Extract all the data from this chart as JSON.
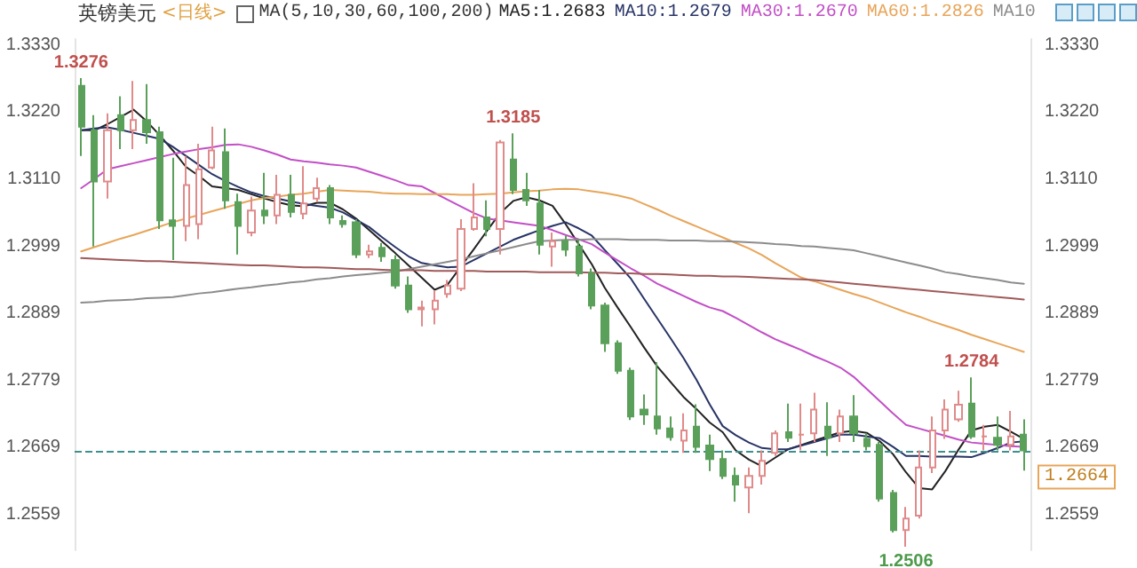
{
  "chart_data": {
    "type": "candlestick",
    "title": "英镑美元",
    "subtitle": "<日线>",
    "annotations": [
      "MA(5,10,30,60,100,200)",
      {
        "text": "1.3276",
        "y": 1.3276
      },
      {
        "text": "1.3185",
        "y": 1.3185
      },
      {
        "text": "1.2784",
        "y": 1.2784
      },
      {
        "text": "1.2506",
        "y": 1.2506
      }
    ],
    "categories": [
      null,
      null,
      null,
      null,
      null,
      null,
      null,
      null,
      null,
      null,
      null,
      null,
      null,
      null,
      null,
      null,
      null,
      null,
      null,
      null,
      null,
      null,
      null,
      null,
      null,
      null,
      null,
      null,
      null,
      null,
      null,
      null,
      null,
      null,
      null,
      null,
      null,
      null,
      null,
      null,
      null,
      null,
      null,
      null,
      null,
      null,
      null,
      null,
      null,
      null,
      null,
      null,
      null,
      null,
      null,
      null,
      null,
      null,
      null,
      null,
      null,
      null,
      null,
      null,
      null,
      null,
      null,
      null,
      null,
      null,
      null,
      null,
      null
    ],
    "ohlc": [
      [
        1.3263,
        1.3276,
        1.3148,
        1.3196
      ],
      [
        1.319,
        1.3215,
        1.2999,
        1.3106
      ],
      [
        1.3106,
        1.3218,
        1.3078,
        1.319
      ],
      [
        1.3215,
        1.3246,
        1.3159,
        1.319
      ],
      [
        1.319,
        1.3271,
        1.3159,
        1.3207
      ],
      [
        1.3207,
        1.3266,
        1.3168,
        1.3187
      ],
      [
        1.3187,
        1.3196,
        1.3028,
        1.3042
      ],
      [
        1.3042,
        1.3145,
        1.2977,
        1.3033
      ],
      [
        1.3033,
        1.3148,
        1.3008,
        1.31
      ],
      [
        1.3036,
        1.3168,
        1.3011,
        1.3126
      ],
      [
        1.3129,
        1.3196,
        1.3126,
        1.3157
      ],
      [
        1.3154,
        1.3193,
        1.3061,
        1.3075
      ],
      [
        1.3072,
        1.3086,
        1.2986,
        1.3033
      ],
      [
        1.3022,
        1.3081,
        1.3016,
        1.3058
      ],
      [
        1.3058,
        1.312,
        1.3036,
        1.305
      ],
      [
        1.305,
        1.3117,
        1.3036,
        1.3084
      ],
      [
        1.3084,
        1.3117,
        1.3047,
        1.3056
      ],
      [
        1.3053,
        1.3131,
        1.3044,
        1.307
      ],
      [
        1.3078,
        1.3112,
        1.3072,
        1.3095
      ],
      [
        1.3095,
        1.31,
        1.3036,
        1.3047
      ],
      [
        1.3041,
        1.305,
        1.303,
        1.3036
      ],
      [
        1.3039,
        1.3044,
        1.298,
        1.2986
      ],
      [
        1.2986,
        1.3002,
        1.298,
        1.2991
      ],
      [
        1.2997,
        1.3005,
        1.2974,
        1.2983
      ],
      [
        1.2977,
        1.2985,
        1.293,
        1.2935
      ],
      [
        1.2935,
        1.295,
        1.289,
        1.2896
      ],
      [
        1.2896,
        1.291,
        1.2868,
        1.2899
      ],
      [
        1.2896,
        1.2927,
        1.2871,
        1.291
      ],
      [
        1.2921,
        1.2944,
        1.2915,
        1.2935
      ],
      [
        1.293,
        1.3044,
        1.2926,
        1.3028
      ],
      [
        1.3028,
        1.3103,
        1.3025,
        1.3047
      ],
      [
        1.3047,
        1.3075,
        1.3016,
        1.3028
      ],
      [
        1.3028,
        1.3174,
        1.2986,
        1.317
      ],
      [
        1.3142,
        1.3185,
        1.3085,
        1.3092
      ],
      [
        1.3092,
        1.312,
        1.3066,
        1.3075
      ],
      [
        1.307,
        1.3092,
        1.2986,
        1.3002
      ],
      [
        1.2999,
        1.3022,
        1.2966,
        1.3008
      ],
      [
        1.3008,
        1.3017,
        1.2983,
        1.2994
      ],
      [
        1.2999,
        1.3011,
        1.295,
        1.2955
      ],
      [
        1.2955,
        1.2963,
        1.2896,
        1.2902
      ],
      [
        1.2902,
        1.2907,
        1.2826,
        1.284
      ],
      [
        1.284,
        1.2845,
        1.279,
        1.2795
      ],
      [
        1.2795,
        1.28,
        1.2714,
        1.272
      ],
      [
        1.2731,
        1.2756,
        1.2706,
        1.2723
      ],
      [
        1.272,
        1.2809,
        1.269,
        1.27
      ],
      [
        1.27,
        1.272,
        1.268,
        1.2686
      ],
      [
        1.268,
        1.2725,
        1.266,
        1.2697
      ],
      [
        1.2703,
        1.274,
        1.266,
        1.267
      ],
      [
        1.2672,
        1.269,
        1.263,
        1.265
      ],
      [
        1.265,
        1.2664,
        1.2617,
        1.2622
      ],
      [
        1.2622,
        1.2636,
        1.258,
        1.2608
      ],
      [
        1.2603,
        1.2636,
        1.2561,
        1.2622
      ],
      [
        1.2622,
        1.2664,
        1.2608,
        1.2647
      ],
      [
        1.266,
        1.2697,
        1.2655,
        1.2692
      ],
      [
        1.2694,
        1.2741,
        1.2678,
        1.2685
      ],
      [
        1.269,
        1.2741,
        1.2664,
        1.269
      ],
      [
        1.2692,
        1.2759,
        1.2678,
        1.2731
      ],
      [
        1.2703,
        1.2743,
        1.2655,
        1.2685
      ],
      [
        1.2692,
        1.2731,
        1.2678,
        1.272
      ],
      [
        1.272,
        1.2755,
        1.2678,
        1.2692
      ],
      [
        1.2683,
        1.2692,
        1.2664,
        1.2671
      ],
      [
        1.2673,
        1.2678,
        1.258,
        1.2585
      ],
      [
        1.2594,
        1.2599,
        1.2529,
        1.2533
      ],
      [
        1.2533,
        1.2571,
        1.2506,
        1.2552
      ],
      [
        1.2557,
        1.2664,
        1.2552,
        1.2636
      ],
      [
        1.2636,
        1.272,
        1.2627,
        1.2697
      ],
      [
        1.2697,
        1.2748,
        1.2683,
        1.2731
      ],
      [
        1.2715,
        1.2762,
        1.2711,
        1.2739
      ],
      [
        1.2741,
        1.2784,
        1.2683,
        1.2687
      ],
      [
        1.2687,
        1.2706,
        1.2664,
        1.2687
      ],
      [
        1.2685,
        1.272,
        1.2664,
        1.2673
      ],
      [
        1.2673,
        1.2729,
        1.2664,
        1.2687
      ],
      [
        1.269,
        1.2715,
        1.2631,
        1.2664
      ]
    ],
    "colors": [
      "#5aa05a",
      "#5aa05a",
      "#e08a8a",
      "#5aa05a",
      "#e08a8a",
      "#5aa05a",
      "#5aa05a",
      "#5aa05a",
      "#e08a8a",
      "#e08a8a",
      "#e08a8a",
      "#5aa05a",
      "#5aa05a",
      "#e08a8a",
      "#5aa05a",
      "#e08a8a",
      "#5aa05a",
      "#e08a8a",
      "#e08a8a",
      "#5aa05a",
      "#5aa05a",
      "#5aa05a",
      "#e08a8a",
      "#5aa05a",
      "#5aa05a",
      "#5aa05a",
      "#e08a8a",
      "#e08a8a",
      "#e08a8a",
      "#e08a8a",
      "#e08a8a",
      "#5aa05a",
      "#e08a8a",
      "#5aa05a",
      "#5aa05a",
      "#5aa05a",
      "#e08a8a",
      "#5aa05a",
      "#5aa05a",
      "#5aa05a",
      "#5aa05a",
      "#5aa05a",
      "#5aa05a",
      "#5aa05a",
      "#5aa05a",
      "#5aa05a",
      "#e08a8a",
      "#5aa05a",
      "#5aa05a",
      "#5aa05a",
      "#5aa05a",
      "#e08a8a",
      "#e08a8a",
      "#e08a8a",
      "#5aa05a",
      "#e08a8a",
      "#e08a8a",
      "#5aa05a",
      "#e08a8a",
      "#5aa05a",
      "#5aa05a",
      "#5aa05a",
      "#5aa05a",
      "#e08a8a",
      "#e08a8a",
      "#e08a8a",
      "#e08a8a",
      "#e08a8a",
      "#5aa05a",
      "#e08a8a",
      "#5aa05a",
      "#e08a8a",
      "#5aa05a"
    ],
    "series": [
      {
        "type": "line",
        "name": "MA5:1.2683",
        "color": "#222222",
        "values": [
          1.319,
          1.319,
          1.32,
          1.3212,
          1.3224,
          1.3205,
          1.3182,
          1.3157,
          1.313,
          1.3115,
          1.3098,
          1.3095,
          1.3092,
          1.3085,
          1.3078,
          1.3072,
          1.3067,
          1.3065,
          1.3071,
          1.3071,
          1.306,
          1.3045,
          1.3026,
          1.3007,
          1.2988,
          1.2968,
          1.2948,
          1.2928,
          1.2937,
          1.2966,
          1.2995,
          1.3025,
          1.3054,
          1.3074,
          1.308,
          1.3075,
          1.3066,
          1.3036,
          1.3003,
          1.297,
          1.2931,
          1.2898,
          1.2866,
          1.2833,
          1.2802,
          1.2777,
          1.2752,
          1.2732,
          1.271,
          1.2694,
          1.2664,
          1.2649,
          1.2638,
          1.2652,
          1.2666,
          1.2673,
          1.268,
          1.2687,
          1.2694,
          1.2696,
          1.2693,
          1.2679,
          1.2658,
          1.2628,
          1.2602,
          1.26,
          1.263,
          1.2665,
          1.2697,
          1.2703,
          1.2706,
          1.2695,
          1.2683
        ]
      },
      {
        "type": "line",
        "name": "MA10:1.2679",
        "color": "#283466",
        "values": [
          1.319,
          1.3193,
          1.3195,
          1.3191,
          1.3186,
          1.3181,
          1.3176,
          1.3163,
          1.3148,
          1.3133,
          1.3118,
          1.3107,
          1.3097,
          1.3088,
          1.3082,
          1.3078,
          1.3073,
          1.3069,
          1.3066,
          1.3063,
          1.3055,
          1.3043,
          1.3031,
          1.3014,
          1.2998,
          1.2983,
          1.2972,
          1.2968,
          1.2965,
          1.2966,
          1.2977,
          1.2988,
          1.2999,
          1.301,
          1.3018,
          1.3026,
          1.3033,
          1.3039,
          1.3029,
          1.3017,
          1.2993,
          1.297,
          1.2946,
          1.2913,
          1.2881,
          1.2849,
          1.2816,
          1.278,
          1.274,
          1.2704,
          1.2689,
          1.2677,
          1.2668,
          1.2666,
          1.2666,
          1.2672,
          1.2678,
          1.2684,
          1.269,
          1.269,
          1.2687,
          1.2684,
          1.267,
          1.2655,
          1.2655,
          1.2654,
          1.2654,
          1.2654,
          1.2653,
          1.266,
          1.2668,
          1.2677,
          1.2679
        ]
      },
      {
        "type": "line",
        "name": "MA30:1.2670",
        "color": "#c24fc6",
        "values": [
          1.3095,
          1.311,
          1.3126,
          1.3131,
          1.3136,
          1.3141,
          1.3146,
          1.3151,
          1.3155,
          1.3159,
          1.3162,
          1.3166,
          1.3167,
          1.3163,
          1.3157,
          1.315,
          1.3142,
          1.3139,
          1.3137,
          1.3134,
          1.3132,
          1.3129,
          1.3122,
          1.3115,
          1.3108,
          1.31,
          1.3098,
          1.3087,
          1.3076,
          1.3065,
          1.3054,
          1.3045,
          1.3042,
          1.3039,
          1.3036,
          1.3033,
          1.3026,
          1.3018,
          1.3011,
          1.3003,
          1.2989,
          1.2976,
          1.2963,
          1.2951,
          1.2938,
          1.2928,
          1.2918,
          1.2908,
          1.2899,
          1.2893,
          1.2882,
          1.287,
          1.2858,
          1.2847,
          1.2838,
          1.2829,
          1.2819,
          1.281,
          1.28,
          1.2785,
          1.2765,
          1.2745,
          1.2725,
          1.2706,
          1.27,
          1.2694,
          1.2688,
          1.2682,
          1.2677,
          1.2675,
          1.2673,
          1.2671,
          1.267
        ]
      },
      {
        "type": "line",
        "name": "MA60:1.2826",
        "color": "#e8a55a",
        "values": [
          1.2991,
          1.2998,
          1.3005,
          1.3012,
          1.3018,
          1.3025,
          1.3032,
          1.3039,
          1.3045,
          1.3051,
          1.3057,
          1.3063,
          1.3069,
          1.3075,
          1.3079,
          1.3081,
          1.3084,
          1.3086,
          1.3089,
          1.3092,
          1.3091,
          1.309,
          1.3089,
          1.3087,
          1.3086,
          1.3086,
          1.3085,
          1.3085,
          1.3085,
          1.3084,
          1.3084,
          1.3085,
          1.3086,
          1.3088,
          1.309,
          1.3091,
          1.3093,
          1.3094,
          1.3093,
          1.309,
          1.3087,
          1.3083,
          1.3078,
          1.3069,
          1.306,
          1.305,
          1.3041,
          1.3032,
          1.3023,
          1.3014,
          1.3005,
          1.2996,
          1.2985,
          1.2972,
          1.296,
          1.2948,
          1.2942,
          1.2935,
          1.2928,
          1.2921,
          1.2915,
          1.2907,
          1.2899,
          1.2891,
          1.2884,
          1.2876,
          1.2869,
          1.2862,
          1.2854,
          1.2847,
          1.284,
          1.2833,
          1.2826
        ]
      },
      {
        "type": "line",
        "name": "MA10",
        "color": "#8c8c8c",
        "values": [
          1.2907,
          1.2908,
          1.291,
          1.2911,
          1.2912,
          1.2914,
          1.2915,
          1.2916,
          1.2919,
          1.2922,
          1.2924,
          1.2927,
          1.293,
          1.2932,
          1.2935,
          1.2937,
          1.294,
          1.2942,
          1.2945,
          1.2947,
          1.295,
          1.2952,
          1.2954,
          1.2956,
          1.2958,
          1.2962,
          1.2966,
          1.297,
          1.2974,
          1.2978,
          1.2983,
          1.2988,
          1.2993,
          1.2998,
          1.3003,
          1.3008,
          1.3009,
          1.301,
          1.301,
          1.3011,
          1.3011,
          1.3011,
          1.301,
          1.301,
          1.301,
          1.3009,
          1.3009,
          1.3009,
          1.3008,
          1.3008,
          1.3007,
          1.3006,
          1.3005,
          1.3003,
          1.3002,
          1.3,
          1.2999,
          1.2997,
          1.2995,
          1.2993,
          1.2988,
          1.2983,
          1.2978,
          1.2973,
          1.2968,
          1.2963,
          1.2957,
          1.2954,
          1.295,
          1.2947,
          1.2944,
          1.294,
          1.2938
        ]
      },
      {
        "type": "line",
        "color": "#a05a5a",
        "values": [
          1.298,
          1.2979,
          1.2978,
          1.2977,
          1.2976,
          1.2975,
          1.2975,
          1.2974,
          1.2973,
          1.2972,
          1.2971,
          1.297,
          1.2969,
          1.2968,
          1.2968,
          1.2967,
          1.2966,
          1.2965,
          1.2965,
          1.2964,
          1.2963,
          1.2962,
          1.2962,
          1.2961,
          1.296,
          1.296,
          1.296,
          1.2959,
          1.2959,
          1.2959,
          1.2959,
          1.2958,
          1.2958,
          1.2958,
          1.2958,
          1.2957,
          1.2957,
          1.2957,
          1.2957,
          1.2956,
          1.2956,
          1.2955,
          1.2955,
          1.2954,
          1.2954,
          1.2953,
          1.2952,
          1.2951,
          1.2951,
          1.295,
          1.295,
          1.2949,
          1.2948,
          1.2947,
          1.2946,
          1.2945,
          1.2944,
          1.2942,
          1.294,
          1.2938,
          1.2936,
          1.2934,
          1.2932,
          1.293,
          1.2928,
          1.2926,
          1.2924,
          1.2922,
          1.292,
          1.2918,
          1.2916,
          1.2914,
          1.2912
        ]
      }
    ],
    "ylim": [
      1.25,
      1.334
    ],
    "yticks": [
      {
        "value": 1.333,
        "label": "1.3330"
      },
      {
        "value": 1.322,
        "label": "1.3220"
      },
      {
        "value": 1.311,
        "label": "1.3110"
      },
      1.2999,
      1.2889,
      1.2779,
      1.2669,
      1.2559
    ],
    "y2lim": [
      1.25,
      1.334
    ],
    "y2ticks": [
      {
        "value": 1.333,
        "label": "1.3330"
      },
      {
        "value": 1.322,
        "label": "1.3220"
      },
      {
        "value": 1.311,
        "label": "1.3110"
      },
      1.2999,
      1.2889,
      1.2779,
      1.2669,
      1.2559
    ],
    "ref_lines": [
      {
        "axis": "y",
        "value": 1.2664,
        "label": "1.2664",
        "color": "#3f8f8f",
        "line_style": "dashed"
      }
    ],
    "legend": "top",
    "marker": "none"
  }
}
